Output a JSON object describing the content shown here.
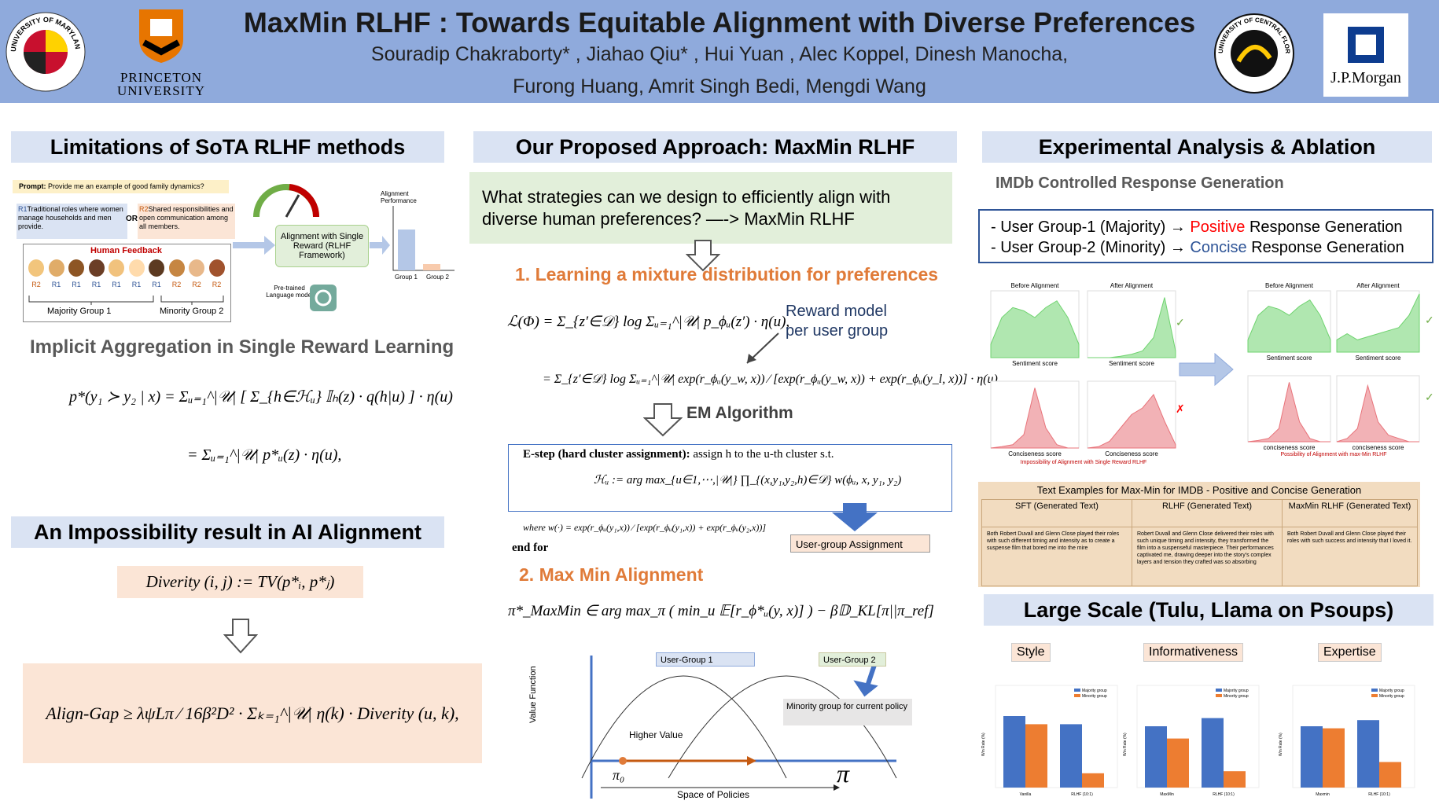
{
  "header": {
    "title": "MaxMin RLHF : Towards Equitable Alignment with Diverse Preferences",
    "authors": [
      "Souradip Chakraborty* , Jiahao Qiu* , Hui Yuan , Alec Koppel, Dinesh Manocha,",
      "Furong Huang, Amrit Singh Bedi, Mengdi Wang"
    ],
    "logos": {
      "umd": "UNIVERSITY OF MARYLAND",
      "princeton": [
        "PRINCETON",
        "UNIVERSITY"
      ],
      "ucf": "UNIVERSITY OF CENTRAL FLORIDA",
      "jpmorgan": "J.P.Morgan"
    }
  },
  "left": {
    "title": "Limitations of SoTA RLHF methods",
    "figure": {
      "prompt_label": "Prompt:",
      "prompt": "Provide me an example of good family dynamics?",
      "r1_tag": "R1",
      "r1": "Traditional roles where women manage households and men provide.",
      "or": "OR",
      "r2_tag": "R2",
      "r2": "Shared responsibilities and open communication among all members.",
      "feedback_title": "Human Feedback",
      "votes": [
        "R2",
        "R1",
        "R1",
        "R1",
        "R1",
        "R1",
        "R1",
        "R2",
        "R2",
        "R2"
      ],
      "majority": "Majority Group 1",
      "minority": "Minority Group 2",
      "rlhf": "Alignment with Single Reward (RLHF Framework)",
      "llm": "Pre-trained Language model",
      "perf": "Alignment Performance",
      "groups": [
        "Group 1",
        "Group 2"
      ]
    },
    "subtitle": "Implicit Aggregation in Single Reward Learning",
    "eq1": "p*(y₁ ≻ y₂ | x) = Σᵤ₌₁^|𝒰| [ Σ_{h∈ℋᵤ} 𝕀ₕ(z) · q(h|u) ] · η(u)",
    "eq2": "= Σᵤ₌₁^|𝒰| p*ᵤ(z) · η(u),",
    "impossibility": {
      "title": "An Impossibility result in AI Alignment",
      "diversity": "Diverity (i, j) := TV(p*ᵢ, p*ⱼ)",
      "gap": "Align-Gap ≥ λψLπ ⁄ 16β²D² · Σₖ₌₁^|𝒰| η(k) · Diverity (u, k),"
    }
  },
  "middle": {
    "title": "Our Proposed Approach: MaxMin RLHF",
    "question": "What strategies can we design to efficiently align with diverse human preferences? —-> MaxMin RLHF",
    "step1": "1. Learning a mixture distribution for preferences",
    "eq1": "ℒ(Φ) = Σ_{z′∈𝒟} log Σᵤ₌₁^|𝒰| p_ϕᵤ(z′) · η(u),",
    "eq2": "= Σ_{z′∈𝒟} log Σᵤ₌₁^|𝒰| exp(r_ϕᵤ(y_w, x)) ⁄ [exp(r_ϕᵤ(y_w, x)) + exp(r_ϕᵤ(y_l, x))] · η(u)",
    "reward_note": [
      "Reward model",
      "per user group"
    ],
    "em": "EM Algorithm",
    "estep_label": "E-step (hard cluster assignment):",
    "estep_text": "assign h to the u-th cluster s.t.",
    "estep_eq": "ℋᵤ := arg max_{u∈1,⋯,|𝒰|} ∏_{(x,y₁,y₂,h)∈𝒟} w(ϕᵤ, x, y₁, y₂)",
    "where": "where w(·) = exp(r_ϕᵤ(y₁,x)) ⁄ [exp(r_ϕᵤ(y₁,x)) + exp(r_ϕᵤ(y₂,x))]",
    "endfor": "end for",
    "assignment": "User-group Assignment",
    "step2": "2. Max Min Alignment",
    "eq3": "π*_MaxMin ∈ arg max_π ( min_u 𝔼[r_ϕ*ᵤ(y, x)] ) − β𝔻_KL[π||π_ref]",
    "plot": {
      "group1": "User-Group 1",
      "group2": "User-Group 2",
      "minority_note": "Minority group for current policy",
      "higher": "Higher Value",
      "ylabel": "Value Function",
      "pi0": "π₀",
      "pi": "π",
      "xlabel": "Space of Policies"
    }
  },
  "right": {
    "title": "Experimental Analysis & Ablation",
    "subtitle": "IMDb Controlled Response Generation",
    "groups": [
      {
        "prefix": "- User Group-1 (Majority) → ",
        "word": "Positive",
        "suffix": " Response Generation"
      },
      {
        "prefix": "- User Group-2 (Minority) → ",
        "word": "Concise",
        "suffix": " Response Generation"
      }
    ],
    "plots": {
      "before": "Before Alignment",
      "after": "After Alignment",
      "sentiment": "Sentiment score",
      "conciseness": "Conciseness score",
      "conciseness2": "conciseness score",
      "caption_left": "Impossibility of Alignment with Single Reward RLHF",
      "caption_right": "Possibility of Alignment with max-Min RLHF"
    },
    "table": {
      "title": "Text Examples for Max-Min for IMDB - Positive and Concise Generation",
      "headers": [
        "SFT (Generated Text)",
        "RLHF (Generated Text)",
        "MaxMin RLHF (Generated Text)"
      ],
      "cells": [
        "Both Robert Duvall and Glenn Close played their roles with such different timing and intensity as to create a suspense film that bored me into the mire",
        "Robert Duvall and Glenn Close delivered their roles with such unique timing and intensity, they transformed the film into a suspenseful masterpiece. Their performances captivated me, drawing deeper into the story's complex layers and tension they crafted was so absorbing",
        "Both Robert Duvall and Glenn Close played their roles with such success and intensity that I loved it."
      ]
    },
    "large_title": "Large Scale (Tulu, Llama on Psoups)",
    "legend": [
      "Majority group",
      "Minority group"
    ],
    "ylabel": "Win Rate (%)",
    "charts": [
      {
        "title": "Style",
        "xlabels": [
          "Vanilla",
          "RLHF (10:1)"
        ]
      },
      {
        "title": "Informativeness",
        "xlabels": [
          "MaxMin",
          "RLHF (10:1)"
        ]
      },
      {
        "title": "Expertise",
        "xlabels": [
          "Maxmin",
          "RLHF (10:1)"
        ]
      }
    ]
  }
}
